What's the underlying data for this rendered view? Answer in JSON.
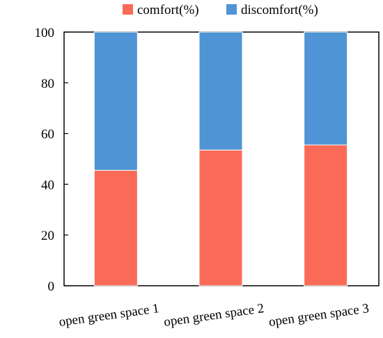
{
  "chart_data": {
    "type": "bar",
    "stacked": true,
    "categories": [
      "open green space 1",
      "open green space 2",
      "open green space 3"
    ],
    "series": [
      {
        "name": "comfort(%)",
        "color": "#f96b57",
        "values": [
          45.5,
          53.5,
          55.5
        ]
      },
      {
        "name": "discomfort(%)",
        "color": "#4f94d4",
        "values": [
          54.5,
          46.5,
          44.5
        ]
      }
    ],
    "yticks": [
      0,
      20,
      40,
      60,
      80,
      100
    ],
    "ylim": [
      0,
      100
    ],
    "grid": false,
    "legend": "top-center"
  }
}
